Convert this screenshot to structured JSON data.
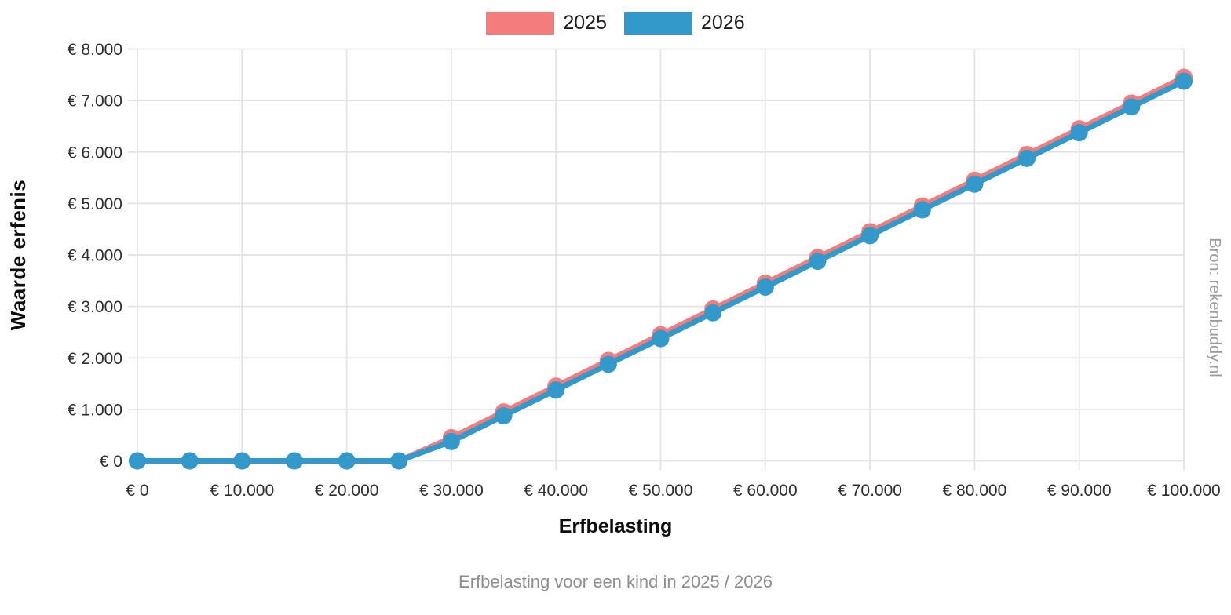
{
  "subtitle": "Erfbelasting voor een kind in 2025 / 2026",
  "source": "Bron: rekenbuddy.nl",
  "axes": {
    "x_title": "Erfbelasting",
    "y_title": "Waarde erfenis"
  },
  "colors": {
    "background": "#ffffff",
    "grid": "#e3e3e3",
    "tick_label": "#2e2e2e",
    "axis_title": "#0d0d0d",
    "subtitle_text": "#8e8e8e",
    "source_text": "#9b9b9b",
    "series_2025": "#F47C7D",
    "series_2026": "#3399CB"
  },
  "chart_data": {
    "type": "line",
    "title": "",
    "subtitle": "Erfbelasting voor een kind in 2025 / 2026",
    "xlabel": "Erfbelasting",
    "ylabel": "Waarde erfenis",
    "x": [
      0,
      5000,
      10000,
      15000,
      20000,
      25000,
      30000,
      35000,
      40000,
      45000,
      50000,
      55000,
      60000,
      65000,
      70000,
      75000,
      80000,
      85000,
      90000,
      95000,
      100000
    ],
    "series": [
      {
        "name": "2025",
        "color": "#F47C7D",
        "values": [
          0,
          0,
          0,
          0,
          0,
          0,
          451,
          951,
          1451,
          1951,
          2451,
          2951,
          3451,
          3951,
          4451,
          4951,
          5451,
          5951,
          6451,
          6951,
          7451
        ]
      },
      {
        "name": "2026",
        "color": "#3399CB",
        "values": [
          0,
          0,
          0,
          0,
          0,
          0,
          376,
          876,
          1376,
          1876,
          2376,
          2876,
          3376,
          3876,
          4376,
          4876,
          5376,
          5876,
          6376,
          6876,
          7376
        ]
      }
    ],
    "xlim": [
      0,
      100000
    ],
    "ylim": [
      0,
      8000
    ],
    "x_tick_step": 10000,
    "y_tick_step": 1000,
    "tick_prefix": "€ ",
    "thousands_separator": ".",
    "grid": true,
    "legend_position": "top",
    "marker": "circle"
  }
}
